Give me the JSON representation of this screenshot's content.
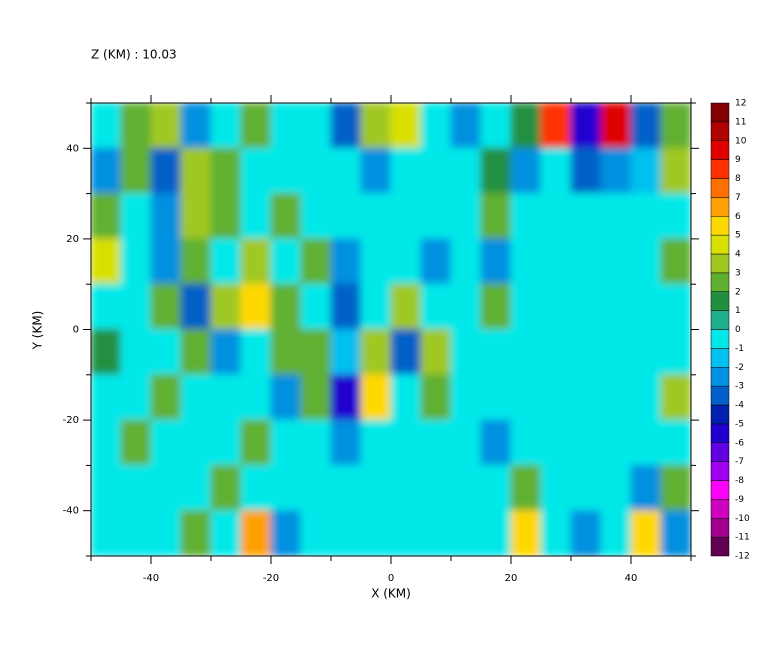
{
  "chart_data": {
    "type": "heatmap",
    "title": "Z (KM) : 10.03",
    "xlabel": "X (KM)",
    "ylabel": "Y (KM)",
    "xlim": [
      -50,
      50
    ],
    "ylim": [
      -50,
      50
    ],
    "xticks": [
      -40,
      -20,
      0,
      20,
      40
    ],
    "yticks": [
      -40,
      -20,
      0,
      20,
      40
    ],
    "xminor_ticks": [
      -50,
      -30,
      -10,
      10,
      30,
      50
    ],
    "yminor_ticks": [
      -50,
      -30,
      -10,
      10,
      30,
      50
    ],
    "x": [
      -47.5,
      -42.5,
      -37.5,
      -32.5,
      -27.5,
      -22.5,
      -17.5,
      -12.5,
      -7.5,
      -2.5,
      2.5,
      7.5,
      12.5,
      17.5,
      22.5,
      27.5,
      32.5,
      37.5,
      42.5,
      47.5
    ],
    "y": [
      45,
      35,
      25,
      15,
      5,
      -5,
      -15,
      -25,
      -35,
      -45
    ],
    "z": [
      [
        -1,
        2,
        3,
        -3,
        -1,
        2,
        -1,
        -1,
        -4,
        3,
        4,
        -1,
        -3,
        -1,
        1,
        8,
        -6,
        9,
        -4,
        2
      ],
      [
        -3,
        2,
        -4,
        3,
        2,
        -1,
        -1,
        -1,
        -1,
        -3,
        -1,
        -1,
        -1,
        1,
        -3,
        -1,
        -4,
        -3,
        -2,
        3
      ],
      [
        2,
        -1,
        -3,
        3,
        2,
        -1,
        2,
        -1,
        -1,
        -1,
        -1,
        -1,
        -1,
        2,
        -1,
        -1,
        -1,
        -1,
        -1,
        -1
      ],
      [
        4,
        -1,
        -3,
        2,
        -1,
        3,
        -1,
        2,
        -3,
        -1,
        -1,
        -3,
        -1,
        -3,
        -1,
        -1,
        -1,
        -1,
        -1,
        2
      ],
      [
        -1,
        -1,
        2,
        -4,
        3,
        5,
        2,
        -1,
        -4,
        -1,
        3,
        -1,
        -1,
        2,
        -1,
        -1,
        -1,
        -1,
        -1,
        -1
      ],
      [
        1,
        -1,
        -1,
        2,
        -3,
        -1,
        2,
        2,
        -2,
        3,
        -4,
        3,
        -1,
        -1,
        -1,
        -1,
        -1,
        -1,
        -1,
        -1
      ],
      [
        -1,
        -1,
        2,
        -1,
        -1,
        -1,
        -3,
        2,
        -6,
        5,
        -1,
        2,
        -1,
        -1,
        -1,
        -1,
        -1,
        -1,
        -1,
        3
      ],
      [
        -1,
        2,
        -1,
        -1,
        -1,
        2,
        -1,
        -1,
        -3,
        -1,
        -1,
        -1,
        -1,
        -3,
        -1,
        -1,
        -1,
        -1,
        -1,
        -1
      ],
      [
        -1,
        -1,
        -1,
        -1,
        2,
        -1,
        -1,
        -1,
        -1,
        -1,
        -1,
        -1,
        -1,
        -1,
        2,
        -1,
        -1,
        -1,
        -3,
        2
      ],
      [
        -1,
        -1,
        -1,
        2,
        -1,
        6,
        -3,
        -1,
        -1,
        -1,
        -1,
        -1,
        -1,
        -1,
        5,
        -1,
        -3,
        -1,
        5,
        -3
      ]
    ],
    "levels": [
      -12,
      -11,
      -10,
      -9,
      -8,
      -7,
      -6,
      -5,
      -4,
      -3,
      -2,
      -1,
      0,
      1,
      2,
      3,
      4,
      5,
      6,
      7,
      8,
      9,
      10,
      11,
      12
    ],
    "colors": [
      "#600050",
      "#a00090",
      "#d000c0",
      "#ff00ff",
      "#a000f0",
      "#6000e0",
      "#2000d0",
      "#0020b0",
      "#0060c8",
      "#0090e0",
      "#00c0f0",
      "#00e8e8",
      "#20b090",
      "#209040",
      "#60b030",
      "#a0c820",
      "#d8e000",
      "#ffd800",
      "#ffa000",
      "#ff7000",
      "#ff3000",
      "#e00000",
      "#b00000",
      "#800000"
    ]
  }
}
